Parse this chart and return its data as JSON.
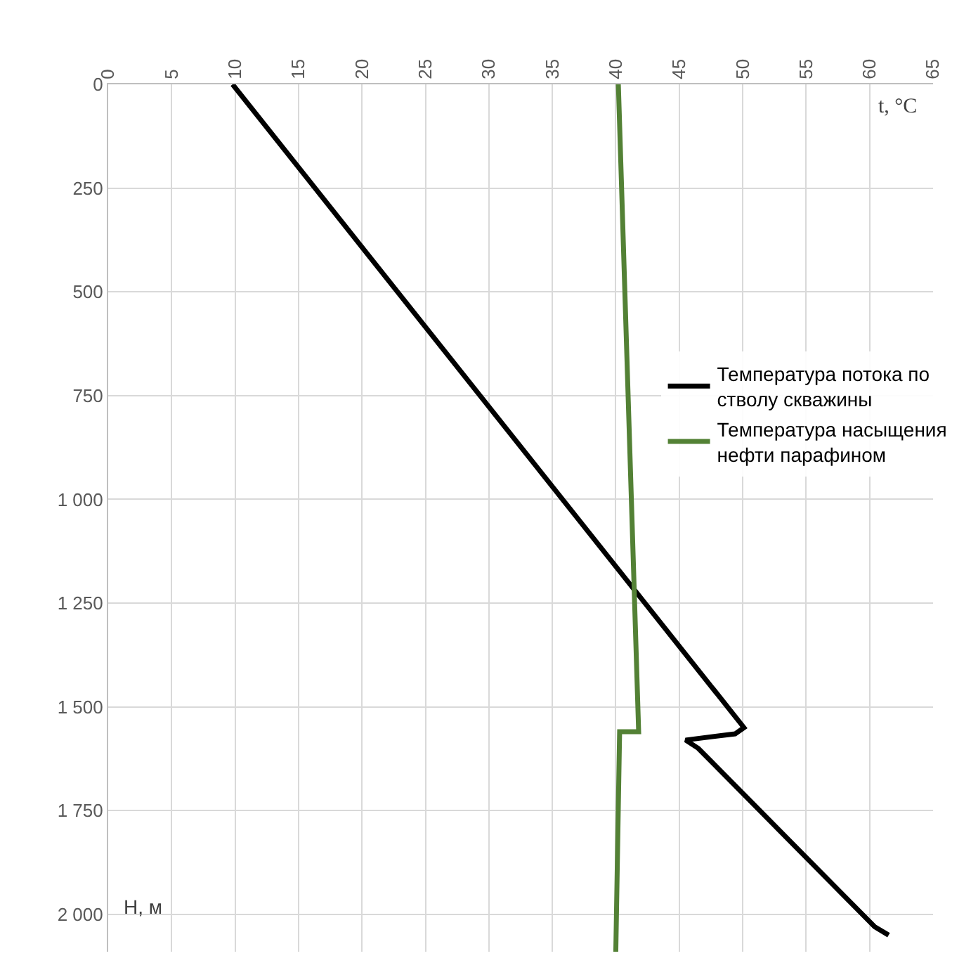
{
  "chart_data": {
    "type": "line",
    "xlabel": "t, °C",
    "ylabel": "H, м",
    "series": [
      {
        "name": "Температура потока по стволу скважины",
        "color": "#000000",
        "x": [
          9.8,
          50.1,
          49.4,
          45.5,
          46.5,
          60.4,
          61.5
        ],
        "values": [
          0,
          1550,
          1565,
          1580,
          1600,
          2030,
          2050
        ]
      },
      {
        "name": "Температура насыщения нефти парафином",
        "color": "#538135",
        "x": [
          40.2,
          41.8,
          40.3,
          40.0
        ],
        "values": [
          0,
          1560,
          1560,
          2090
        ]
      }
    ],
    "xlim": [
      0,
      65
    ],
    "xticks": [
      0,
      5,
      10,
      15,
      20,
      25,
      30,
      35,
      40,
      45,
      50,
      55,
      60,
      65
    ],
    "ylim": [
      2090,
      0
    ],
    "yticks": [
      0,
      250,
      500,
      750,
      {
        "value": 1000,
        "label": "1 000"
      },
      {
        "value": 1250,
        "label": "1 250"
      },
      {
        "value": 1500,
        "label": "1 500"
      },
      {
        "value": 1750,
        "label": "1 750"
      },
      {
        "value": 2000,
        "label": "2 000"
      }
    ],
    "grid": true,
    "legend": "right",
    "marker": "none",
    "line_style": "solid"
  }
}
